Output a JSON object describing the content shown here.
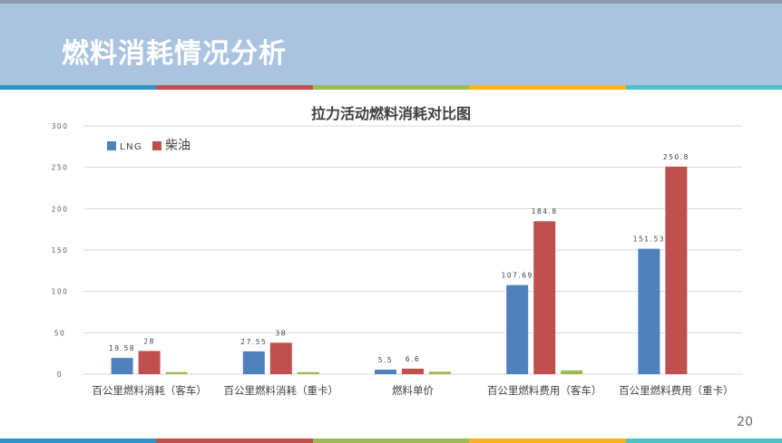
{
  "slide": {
    "title": "燃料消耗情况分析",
    "page_number": "20",
    "stripe_colors": [
      "#2e95c9",
      "#c0504d",
      "#9bbb59",
      "#f6b41e",
      "#4bc2c5"
    ]
  },
  "chart_data": {
    "type": "bar",
    "title": "拉力活动燃料消耗对比图",
    "categories": [
      "百公里燃料消耗（客车）",
      "百公里燃料消耗（重卡）",
      "燃料单价",
      "百公里燃料费用（客车）",
      "百公里燃料费用（重卡）"
    ],
    "series": [
      {
        "name": "LNG",
        "color": "#4f81bd",
        "values": [
          19.58,
          27.55,
          5.5,
          107.69,
          151.53
        ],
        "labels": [
          "19.58",
          "27.55",
          "5.5",
          "107.69",
          "151.53"
        ]
      },
      {
        "name": "柴油",
        "color": "#c0504d",
        "values": [
          28,
          38,
          6.6,
          184.8,
          250.8
        ],
        "labels": [
          "28",
          "38",
          "6.6",
          "184.8",
          "250.8"
        ]
      },
      {
        "name": "",
        "color": "#9bbb59",
        "values": [
          2.5,
          2.5,
          3,
          4.5,
          0
        ],
        "labels": []
      }
    ],
    "y_ticks": [
      "0",
      "50",
      "100",
      "150",
      "200",
      "250",
      "300"
    ],
    "y_tick_values": [
      0,
      50,
      100,
      150,
      200,
      250,
      300
    ],
    "ylim": [
      0,
      300
    ],
    "grid": true,
    "legend": "top-left"
  }
}
